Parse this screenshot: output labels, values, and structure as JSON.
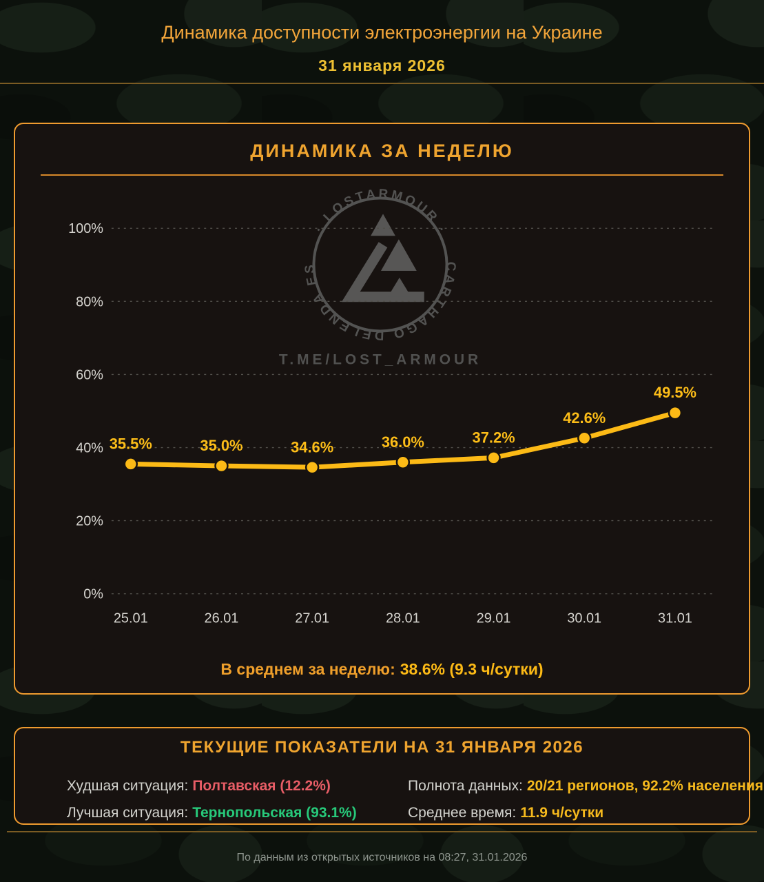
{
  "header": {
    "title": "Динамика доступности электроэнергии на Украине",
    "date": "31 января 2026"
  },
  "chart_card": {
    "title": "ДИНАМИКА ЗА НЕДЕЛЮ",
    "average_label": "В среднем за неделю:",
    "average_value": "38.6% (9.3 ч/сутки)"
  },
  "chart_data": {
    "type": "line",
    "title": "ДИНАМИКА ЗА НЕДЕЛЮ",
    "categories": [
      "25.01",
      "26.01",
      "27.01",
      "28.01",
      "29.01",
      "30.01",
      "31.01"
    ],
    "values": [
      35.5,
      35.0,
      34.6,
      36.0,
      37.2,
      42.6,
      49.5
    ],
    "value_labels": [
      "35.5%",
      "35.0%",
      "34.6%",
      "36.0%",
      "37.2%",
      "42.6%",
      "49.5%"
    ],
    "yticks": [
      0,
      20,
      40,
      60,
      80,
      100
    ],
    "ytick_labels": [
      "0%",
      "20%",
      "40%",
      "60%",
      "80%",
      "100%"
    ],
    "ylim": [
      0,
      100
    ],
    "grid": "dashed horizontal",
    "legend": "none",
    "line_color": "#fcba16",
    "annotation": "В среднем за неделю: 38.6% (9.3 ч/сутки)"
  },
  "watermark": {
    "ring_top": "· LOSTARMOUR ·",
    "ring_bottom": "CARTHAGO DELENDA EST",
    "handle": "T.ME/LOST_ARMOUR"
  },
  "current_card": {
    "title": "ТЕКУЩИЕ ПОКАЗАТЕЛИ НА 31 ЯНВАРЯ 2026",
    "rows": [
      {
        "label": "Худшая ситуация:",
        "value": "Полтавская (12.2%)",
        "color": "#e85d66"
      },
      {
        "label": "Лучшая ситуация:",
        "value": "Тернопольская (93.1%)",
        "color": "#27c97a"
      },
      {
        "label": "Полнота данных:",
        "value": "20/21 регионов, 92.2% населения",
        "color": "#f5b91d"
      },
      {
        "label": "Среднее время:",
        "value": "11.9 ч/сутки",
        "color": "#f5b91d"
      }
    ]
  },
  "footer": {
    "source": "По данным из открытых источников на 08:27, 31.01.2026"
  },
  "colors": {
    "accent_orange": "#ef9b2f",
    "title_orange": "#f2a53a",
    "yellow": "#fcba16",
    "date_yellow": "#eec032",
    "axis_gray": "#d6d4cf",
    "worst_red": "#e85d66",
    "best_green": "#27c97a",
    "card_bg": "#171210",
    "page_bg": "#0c110c",
    "divider_dark_orange": "#7b5b23"
  }
}
